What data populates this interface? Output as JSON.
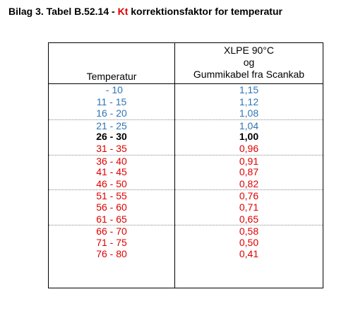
{
  "title": {
    "prefix": "Bilag 3. Tabel B.52.14 - ",
    "kt": "Kt",
    "suffix": " korrektionsfaktor for temperatur"
  },
  "table": {
    "header": {
      "temperature": "Temperatur",
      "cable_line1": "XLPE 90°C",
      "cable_line2": "og",
      "cable_line3": "Gummikabel fra Scankab"
    },
    "colors": {
      "blue": "#2e74b5",
      "black": "#000000",
      "red": "#e00000"
    },
    "rows": [
      {
        "temp": "  - 10",
        "factor": "1,15",
        "style": "blue",
        "sep": false
      },
      {
        "temp": "11 - 15",
        "factor": "1,12",
        "style": "blue",
        "sep": false
      },
      {
        "temp": "16 - 20",
        "factor": "1,08",
        "style": "blue",
        "sep": false
      },
      {
        "temp": "21 - 25",
        "factor": "1,04",
        "style": "blue",
        "sep": true
      },
      {
        "temp": "26 - 30",
        "factor": "1,00",
        "style": "black-bold",
        "sep": false
      },
      {
        "temp": "31 - 35",
        "factor": "0,96",
        "style": "red",
        "sep": false
      },
      {
        "temp": "36 - 40",
        "factor": "0,91",
        "style": "red",
        "sep": true
      },
      {
        "temp": "41 - 45",
        "factor": "0,87",
        "style": "red",
        "sep": false
      },
      {
        "temp": "46 - 50",
        "factor": "0,82",
        "style": "red",
        "sep": false
      },
      {
        "temp": "51 - 55",
        "factor": "0,76",
        "style": "red",
        "sep": true
      },
      {
        "temp": "56 - 60",
        "factor": "0,71",
        "style": "red",
        "sep": false
      },
      {
        "temp": "61 - 65",
        "factor": "0,65",
        "style": "red",
        "sep": false
      },
      {
        "temp": "66 - 70",
        "factor": "0,58",
        "style": "red",
        "sep": true
      },
      {
        "temp": "71 - 75",
        "factor": "0,50",
        "style": "red",
        "sep": false
      },
      {
        "temp": "76 - 80",
        "factor": "0,41",
        "style": "red",
        "sep": false
      }
    ]
  }
}
